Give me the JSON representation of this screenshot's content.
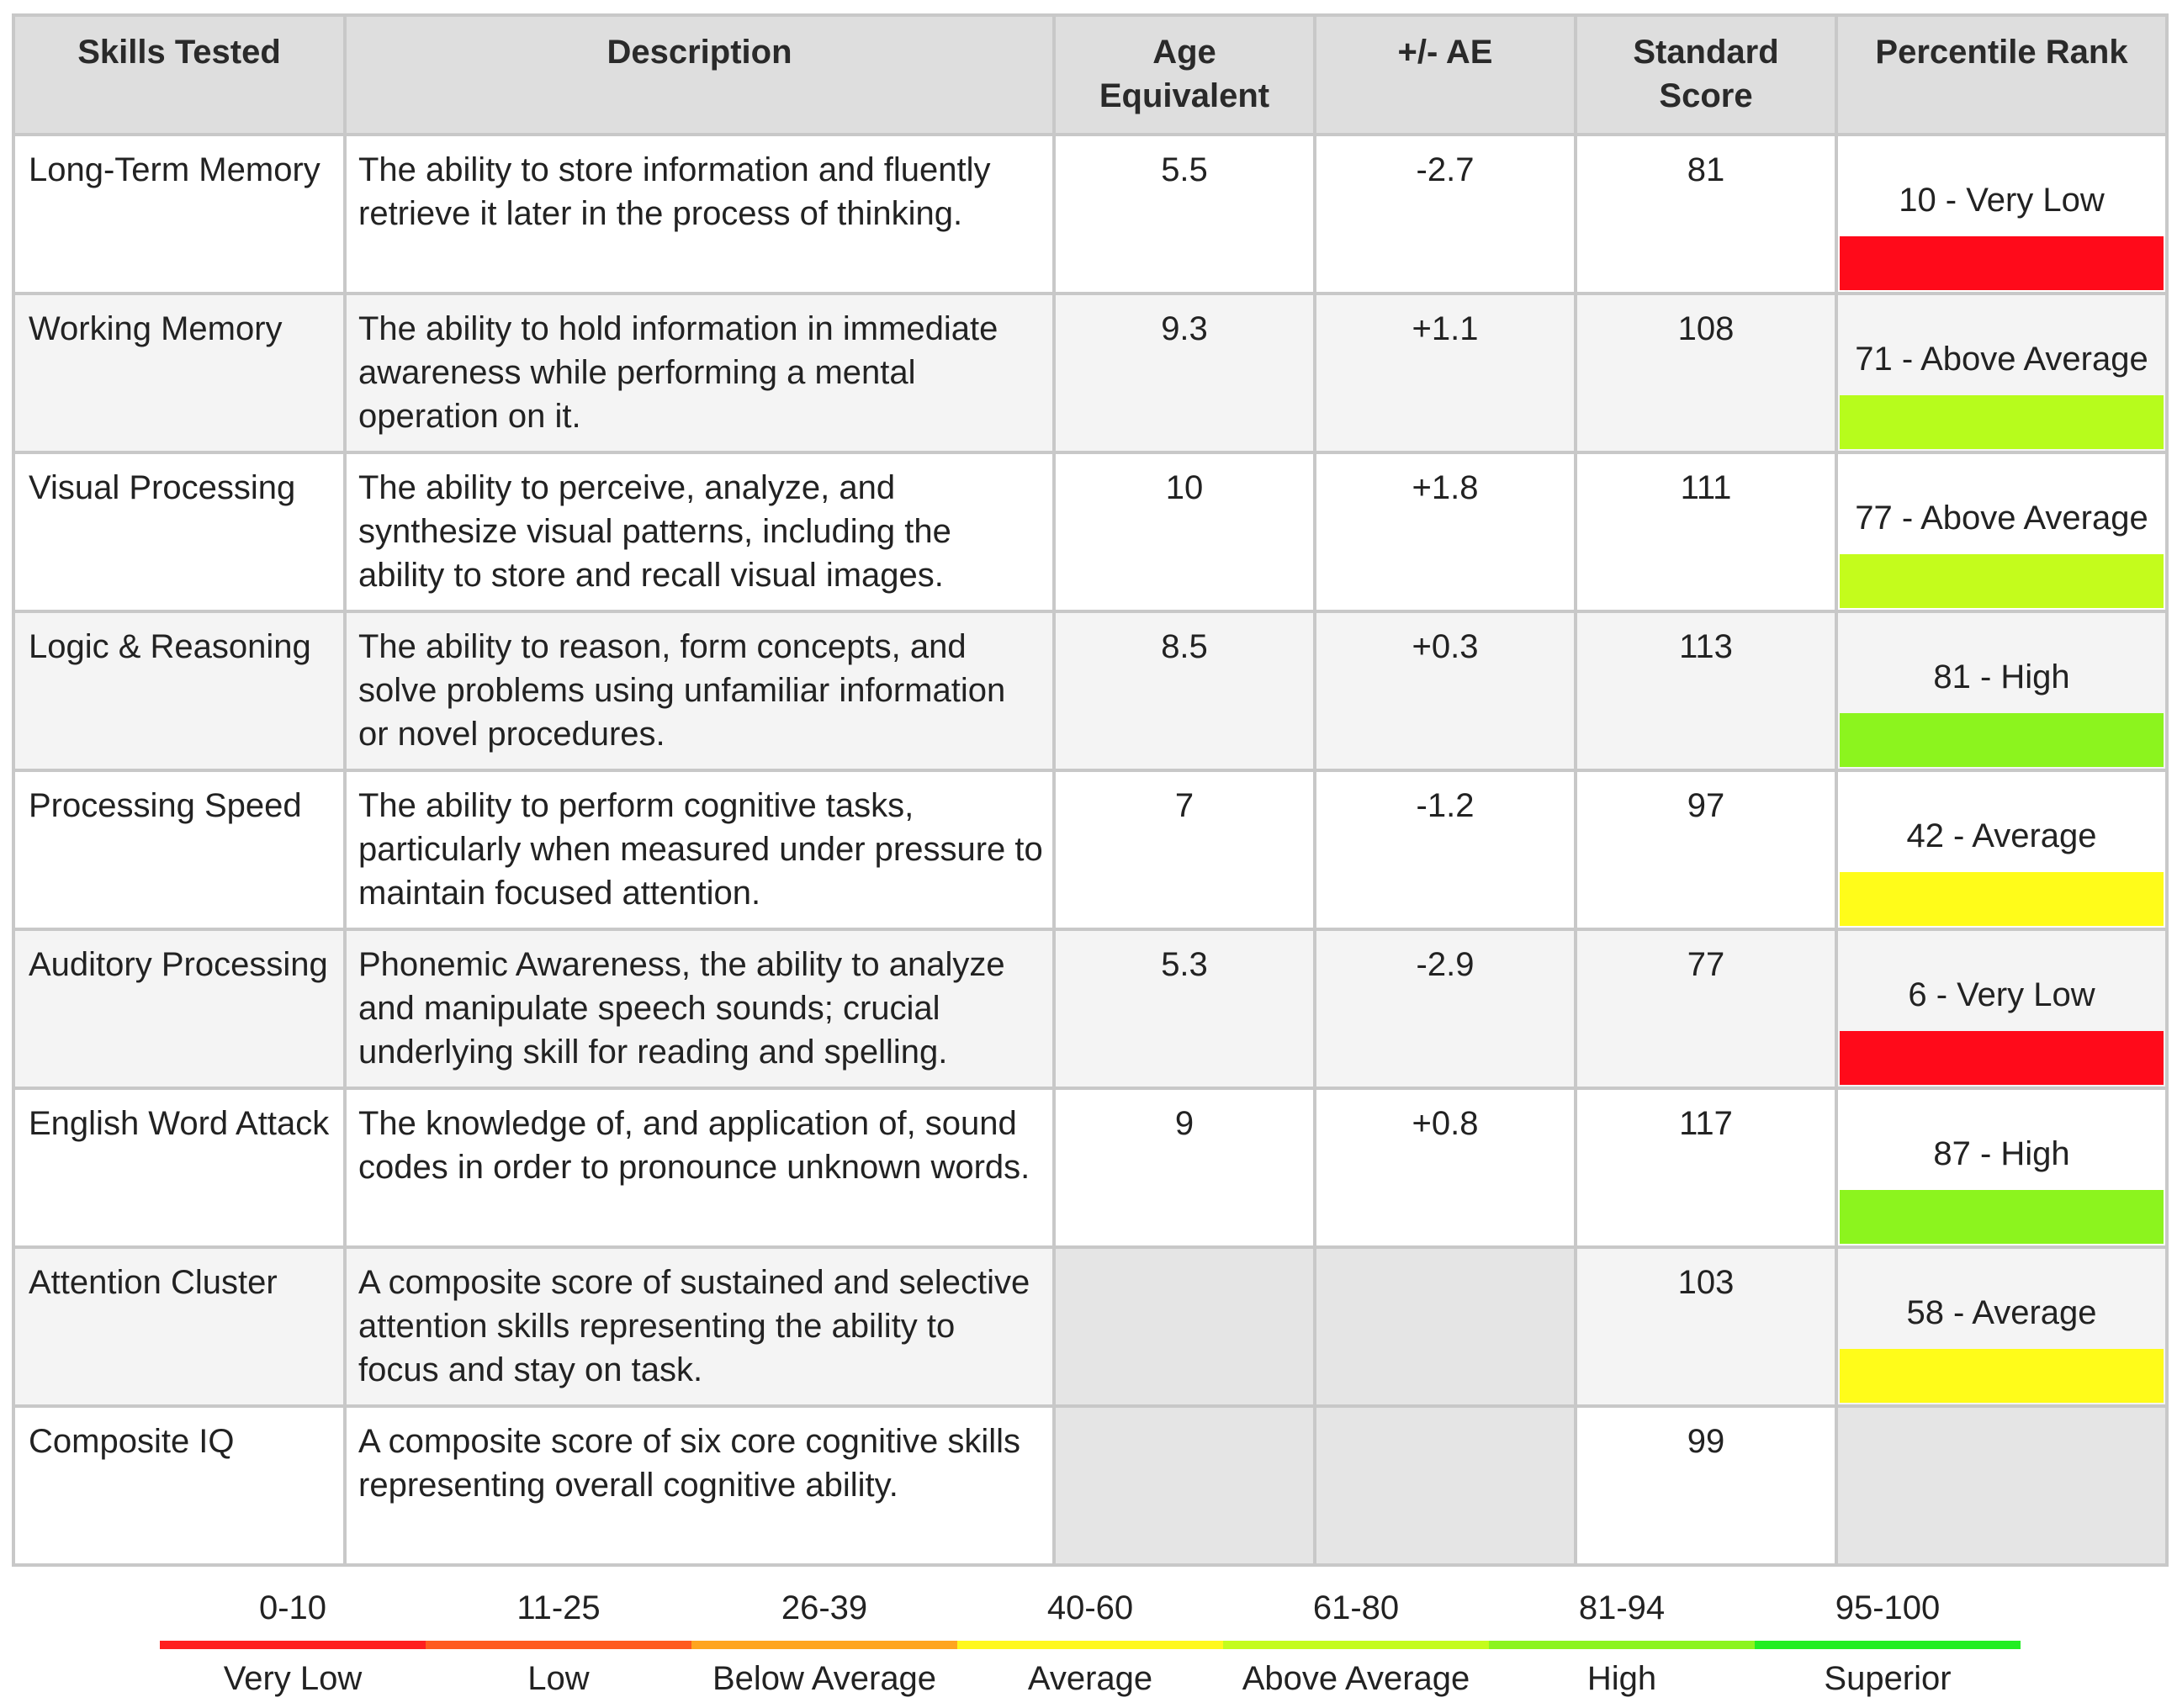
{
  "headers": [
    "Skills Tested",
    "Description",
    "Age Equivalent",
    "+/- AE",
    "Standard Score",
    "Percentile Rank"
  ],
  "rows": [
    {
      "skill": "Long-Term Memory",
      "description": "The ability to store information and fluently retrieve it later in the process of thinking.",
      "age_equivalent": "5.5",
      "ae_diff": "-2.7",
      "standard_score": "81",
      "percentile_rank": "10 - Very Low",
      "rank_color": "#ff0a1a"
    },
    {
      "skill": "Working Memory",
      "description": "The ability to hold information in immediate awareness while performing a mental operation on it.",
      "age_equivalent": "9.3",
      "ae_diff": "+1.1",
      "standard_score": "108",
      "percentile_rank": "71 - Above Average",
      "rank_color": "#b7fc1c"
    },
    {
      "skill": "Visual Processing",
      "description": "The ability to perceive, analyze, and synthesize visual patterns, including the ability to store and recall visual images.",
      "age_equivalent": "10",
      "ae_diff": "+1.8",
      "standard_score": "111",
      "percentile_rank": "77 - Above Average",
      "rank_color": "#c4fc1c"
    },
    {
      "skill": "Logic & Reasoning",
      "description": "The ability to reason, form concepts, and solve problems using unfamiliar information or novel procedures.",
      "age_equivalent": "8.5",
      "ae_diff": "+0.3",
      "standard_score": "113",
      "percentile_rank": "81 - High",
      "rank_color": "#8cf41e"
    },
    {
      "skill": "Processing Speed",
      "description": "The ability to perform cognitive tasks, particularly when measured under pressure to maintain focused attention.",
      "age_equivalent": "7",
      "ae_diff": "-1.2",
      "standard_score": "97",
      "percentile_rank": "42 - Average",
      "rank_color": "#fffc1a"
    },
    {
      "skill": "Auditory Processing",
      "description": "Phonemic Awareness, the ability to analyze and manipulate speech sounds; crucial underlying skill for reading and spelling.",
      "age_equivalent": "5.3",
      "ae_diff": "-2.9",
      "standard_score": "77",
      "percentile_rank": "6 - Very Low",
      "rank_color": "#ff0a1a"
    },
    {
      "skill": "English Word Attack",
      "description": "The knowledge of, and application of, sound codes in order to pronounce unknown words.",
      "age_equivalent": "9",
      "ae_diff": "+0.8",
      "standard_score": "117",
      "percentile_rank": "87 - High",
      "rank_color": "#8cf41e"
    },
    {
      "skill": "Attention Cluster",
      "description": "A composite score of sustained and selective attention skills representing the ability to focus and stay on task.",
      "age_equivalent": "",
      "ae_diff": "",
      "standard_score": "103",
      "percentile_rank": "58 - Average",
      "rank_color": "#fffc1a"
    },
    {
      "skill": "Composite IQ",
      "description": "A composite score of six core cognitive skills representing overall cognitive ability.",
      "age_equivalent": "",
      "ae_diff": "",
      "standard_score": "99",
      "percentile_rank": "",
      "rank_color": ""
    }
  ],
  "legend": [
    {
      "range": "0-10",
      "label": "Very Low",
      "color": "#ff1f1f"
    },
    {
      "range": "11-25",
      "label": "Low",
      "color": "#ff5a1f"
    },
    {
      "range": "26-39",
      "label": "Below Average",
      "color": "#ffa51f"
    },
    {
      "range": "40-60",
      "label": "Average",
      "color": "#fff81c"
    },
    {
      "range": "61-80",
      "label": "Above Average",
      "color": "#c4fc1c"
    },
    {
      "range": "81-94",
      "label": "High",
      "color": "#8cf41e"
    },
    {
      "range": "95-100",
      "label": "Superior",
      "color": "#22ee22"
    }
  ]
}
